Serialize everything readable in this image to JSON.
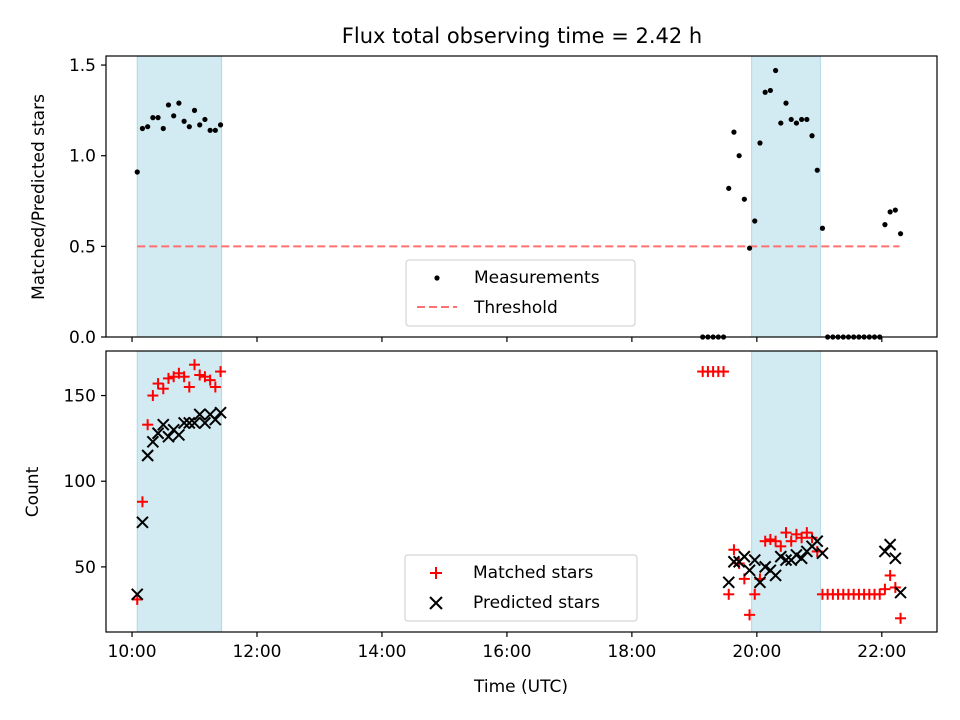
{
  "figure_title": "Flux total observing time = 2.42 h",
  "colors": {
    "band": "#add8e6",
    "measurement": "#000000",
    "threshold": "#ff7070",
    "matched": "#ff0000",
    "predicted": "#000000"
  },
  "chart_data": [
    {
      "type": "scatter",
      "title": "Flux total observing time = 2.42 h",
      "xlabel": "",
      "ylabel": "Matched/Predicted stars",
      "xlim": [
        "09:35",
        "22:53"
      ],
      "ylim": [
        0,
        1.55
      ],
      "yticks": [
        "0.0",
        "0.5",
        "1.0",
        "1.5"
      ],
      "shaded_intervals": [
        [
          "10:05",
          "11:26"
        ],
        [
          "19:55",
          "21:01"
        ]
      ],
      "legend_position": "lower center",
      "legend": {
        "measurements": "Measurements",
        "threshold": "Threshold"
      },
      "threshold": {
        "name": "Threshold",
        "value": 0.5,
        "x_range": [
          "10:05",
          "22:17"
        ]
      },
      "series": [
        {
          "name": "Measurements",
          "marker": "dot",
          "points": [
            [
              "10:05",
              0.91
            ],
            [
              "10:10",
              1.15
            ],
            [
              "10:15",
              1.16
            ],
            [
              "10:20",
              1.21
            ],
            [
              "10:25",
              1.21
            ],
            [
              "10:30",
              1.15
            ],
            [
              "10:35",
              1.28
            ],
            [
              "10:40",
              1.22
            ],
            [
              "10:45",
              1.29
            ],
            [
              "10:50",
              1.19
            ],
            [
              "10:55",
              1.16
            ],
            [
              "11:00",
              1.25
            ],
            [
              "11:05",
              1.17
            ],
            [
              "11:10",
              1.2
            ],
            [
              "11:15",
              1.14
            ],
            [
              "11:20",
              1.14
            ],
            [
              "11:25",
              1.17
            ],
            [
              "19:08",
              0.0
            ],
            [
              "19:13",
              0.0
            ],
            [
              "19:18",
              0.0
            ],
            [
              "19:23",
              0.0
            ],
            [
              "19:28",
              0.0
            ],
            [
              "19:33",
              0.82
            ],
            [
              "19:38",
              1.13
            ],
            [
              "19:43",
              1.0
            ],
            [
              "19:48",
              0.76
            ],
            [
              "19:53",
              0.49
            ],
            [
              "19:58",
              0.64
            ],
            [
              "20:03",
              1.07
            ],
            [
              "20:08",
              1.35
            ],
            [
              "20:13",
              1.36
            ],
            [
              "20:18",
              1.47
            ],
            [
              "20:23",
              1.18
            ],
            [
              "20:28",
              1.29
            ],
            [
              "20:33",
              1.2
            ],
            [
              "20:38",
              1.18
            ],
            [
              "20:43",
              1.2
            ],
            [
              "20:48",
              1.2
            ],
            [
              "20:53",
              1.11
            ],
            [
              "20:58",
              0.92
            ],
            [
              "21:03",
              0.6
            ],
            [
              "21:08",
              0.0
            ],
            [
              "21:13",
              0.0
            ],
            [
              "21:18",
              0.0
            ],
            [
              "21:23",
              0.0
            ],
            [
              "21:28",
              0.0
            ],
            [
              "21:33",
              0.0
            ],
            [
              "21:38",
              0.0
            ],
            [
              "21:43",
              0.0
            ],
            [
              "21:48",
              0.0
            ],
            [
              "21:53",
              0.0
            ],
            [
              "21:58",
              0.0
            ],
            [
              "22:03",
              0.62
            ],
            [
              "22:08",
              0.69
            ],
            [
              "22:13",
              0.7
            ],
            [
              "22:18",
              0.57
            ]
          ]
        }
      ]
    },
    {
      "type": "scatter",
      "title": "",
      "xlabel": "Time (UTC)",
      "ylabel": "Count",
      "xlim": [
        "09:35",
        "22:53"
      ],
      "ylim": [
        12,
        176
      ],
      "xticks": [
        "10:00",
        "12:00",
        "14:00",
        "16:00",
        "18:00",
        "20:00",
        "22:00"
      ],
      "yticks": [
        "50",
        "100",
        "150"
      ],
      "shaded_intervals": [
        [
          "10:05",
          "11:26"
        ],
        [
          "19:55",
          "21:01"
        ]
      ],
      "legend_position": "lower center",
      "legend": {
        "matched": "Matched stars",
        "predicted": "Predicted stars"
      },
      "series": [
        {
          "name": "Matched stars",
          "marker": "plus",
          "points": [
            [
              "10:05",
              31
            ],
            [
              "10:10",
              88
            ],
            [
              "10:15",
              133
            ],
            [
              "10:20",
              150
            ],
            [
              "10:25",
              157
            ],
            [
              "10:30",
              154
            ],
            [
              "10:35",
              160
            ],
            [
              "10:40",
              161
            ],
            [
              "10:45",
              163
            ],
            [
              "10:50",
              161
            ],
            [
              "10:55",
              155
            ],
            [
              "11:00",
              168
            ],
            [
              "11:05",
              162
            ],
            [
              "11:10",
              161
            ],
            [
              "11:15",
              159
            ],
            [
              "11:20",
              155
            ],
            [
              "11:25",
              164
            ],
            [
              "19:08",
              164
            ],
            [
              "19:13",
              164
            ],
            [
              "19:18",
              164
            ],
            [
              "19:23",
              164
            ],
            [
              "19:28",
              164
            ],
            [
              "19:33",
              34
            ],
            [
              "19:38",
              60
            ],
            [
              "19:43",
              52
            ],
            [
              "19:48",
              43
            ],
            [
              "19:53",
              22
            ],
            [
              "19:58",
              34
            ],
            [
              "20:03",
              43
            ],
            [
              "20:08",
              65
            ],
            [
              "20:13",
              66
            ],
            [
              "20:18",
              65
            ],
            [
              "20:23",
              62
            ],
            [
              "20:28",
              70
            ],
            [
              "20:33",
              65
            ],
            [
              "20:38",
              69
            ],
            [
              "20:43",
              67
            ],
            [
              "20:48",
              70
            ],
            [
              "20:53",
              67
            ],
            [
              "20:58",
              59
            ],
            [
              "21:03",
              34
            ],
            [
              "21:08",
              34
            ],
            [
              "21:13",
              34
            ],
            [
              "21:18",
              34
            ],
            [
              "21:23",
              34
            ],
            [
              "21:28",
              34
            ],
            [
              "21:33",
              34
            ],
            [
              "21:38",
              34
            ],
            [
              "21:43",
              34
            ],
            [
              "21:48",
              34
            ],
            [
              "21:53",
              34
            ],
            [
              "21:58",
              34
            ],
            [
              "22:03",
              37
            ],
            [
              "22:08",
              45
            ],
            [
              "22:13",
              38
            ],
            [
              "22:18",
              20
            ]
          ]
        },
        {
          "name": "Predicted stars",
          "marker": "x",
          "points": [
            [
              "10:05",
              34
            ],
            [
              "10:10",
              76
            ],
            [
              "10:15",
              115
            ],
            [
              "10:20",
              123
            ],
            [
              "10:25",
              128
            ],
            [
              "10:30",
              133
            ],
            [
              "10:35",
              126
            ],
            [
              "10:40",
              130
            ],
            [
              "10:45",
              127
            ],
            [
              "10:50",
              134
            ],
            [
              "10:55",
              134
            ],
            [
              "11:00",
              134
            ],
            [
              "11:05",
              139
            ],
            [
              "11:10",
              134
            ],
            [
              "11:15",
              139
            ],
            [
              "11:20",
              136
            ],
            [
              "11:25",
              140
            ],
            [
              "19:33",
              41
            ],
            [
              "19:38",
              53
            ],
            [
              "19:43",
              53
            ],
            [
              "19:48",
              56
            ],
            [
              "19:53",
              48
            ],
            [
              "19:58",
              54
            ],
            [
              "20:03",
              41
            ],
            [
              "20:08",
              50
            ],
            [
              "20:13",
              48
            ],
            [
              "20:18",
              45
            ],
            [
              "20:23",
              56
            ],
            [
              "20:28",
              54
            ],
            [
              "20:33",
              54
            ],
            [
              "20:38",
              57
            ],
            [
              "20:43",
              55
            ],
            [
              "20:48",
              59
            ],
            [
              "20:53",
              62
            ],
            [
              "20:58",
              65
            ],
            [
              "21:03",
              58
            ],
            [
              "22:03",
              59
            ],
            [
              "22:08",
              63
            ],
            [
              "22:13",
              55
            ],
            [
              "22:18",
              35
            ]
          ]
        }
      ]
    }
  ]
}
